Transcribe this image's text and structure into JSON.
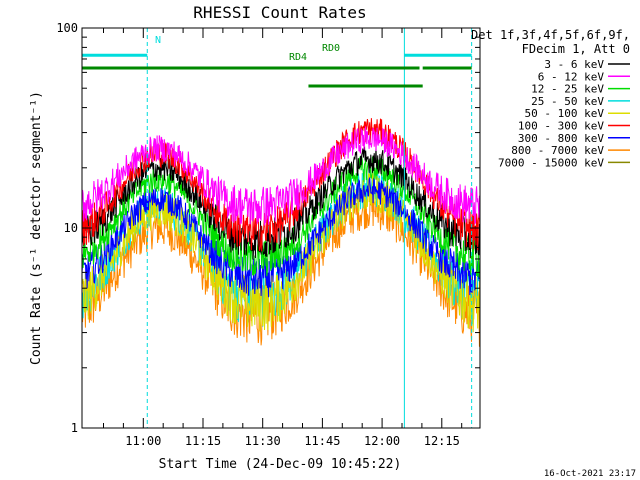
{
  "chart_data": {
    "type": "line",
    "title": "RHESSI Count Rates",
    "xlabel": "Start Time (24-Dec-09 10:45:22)",
    "ylabel": "Count Rate (s⁻¹ detector segment⁻¹)",
    "yscale": "log",
    "ylim": [
      1,
      100
    ],
    "xlim_minutes": [
      -15.4,
      84.6
    ],
    "x_ticks": [
      {
        "label": "11:00",
        "min": 0
      },
      {
        "label": "11:15",
        "min": 15
      },
      {
        "label": "11:30",
        "min": 30
      },
      {
        "label": "11:45",
        "min": 45
      },
      {
        "label": "12:00",
        "min": 60
      },
      {
        "label": "12:15",
        "min": 75
      }
    ],
    "y_ticks": [
      {
        "label": "1",
        "value": 1
      },
      {
        "label": "10",
        "value": 10
      },
      {
        "label": "100",
        "value": 100
      }
    ],
    "legend_header": [
      "Det 1f,3f,4f,5f,6f,9f,",
      "FDecim 1, Att 0"
    ],
    "legend_position": "right",
    "series": [
      {
        "name": "3 - 6 keV",
        "color": "#000000",
        "min": 8.5,
        "peak1": 20,
        "peak2": 22
      },
      {
        "name": "6 - 12 keV",
        "color": "#ff00ff",
        "min": 12.5,
        "peak1": 25,
        "peak2": 28
      },
      {
        "name": "12 - 25 keV",
        "color": "#00dd00",
        "min": 6.8,
        "peak1": 17.5,
        "peak2": 20
      },
      {
        "name": "25 - 50 keV",
        "color": "#00dddd",
        "min": 4.3,
        "peak1": 13,
        "peak2": 16
      },
      {
        "name": "50 - 100 keV",
        "color": "#dddd00",
        "min": 4.0,
        "peak1": 12.5,
        "peak2": 15
      },
      {
        "name": "100 - 300 keV",
        "color": "#ff0000",
        "min": 9.2,
        "peak1": 23.5,
        "peak2": 31
      },
      {
        "name": "300 - 800 keV",
        "color": "#0000ff",
        "min": 5.4,
        "peak1": 14,
        "peak2": 15.5
      },
      {
        "name": "800 - 7000 keV",
        "color": "#ff8800",
        "min": 3.5,
        "peak1": 10,
        "peak2": 12.5
      },
      {
        "name": "7000 - 15000 keV",
        "color": "#888800",
        "min": 0,
        "peak1": 0,
        "peak2": 0
      }
    ],
    "peaks_minutes": [
      4,
      57
    ],
    "vertical_lines": [
      {
        "min": -15.4,
        "style": "solid",
        "color": "#00dddd"
      },
      {
        "min": 1,
        "style": "dashed",
        "color": "#00dddd"
      },
      {
        "min": 65.6,
        "style": "solid",
        "color": "#00dddd"
      },
      {
        "min": 82.5,
        "style": "dashed",
        "color": "#00dddd"
      }
    ],
    "flag_bars": [
      {
        "label": "N",
        "color": "#00dddd",
        "y_frac": 0.068,
        "segments": [
          [
            -15.4,
            1
          ],
          [
            65.6,
            82.5
          ]
        ]
      },
      {
        "label": "RD0",
        "color": "#008800",
        "y_frac": 0.1,
        "segments": [
          [
            -15.4,
            69.4
          ],
          [
            70.2,
            82.5
          ]
        ]
      },
      {
        "label": "RD4",
        "color": "#008800",
        "y_frac": 0.145,
        "segments": [
          [
            41.5,
            70.2
          ]
        ]
      }
    ]
  },
  "timestamp": "16-Oct-2021 23:17"
}
